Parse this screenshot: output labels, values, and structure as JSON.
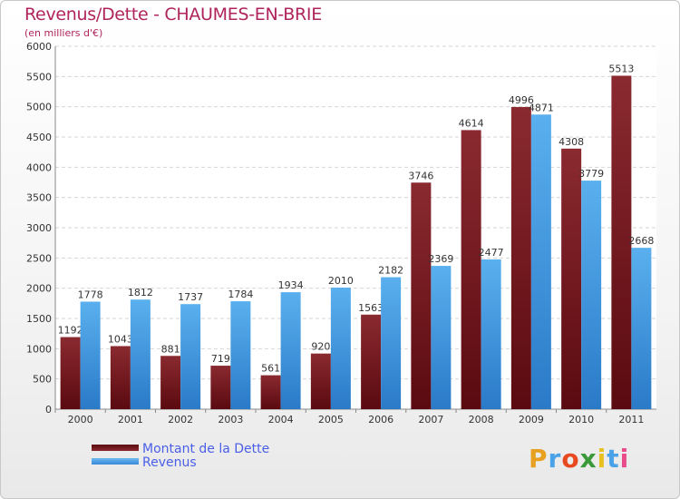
{
  "chart_data": {
    "type": "bar",
    "title": "Revenus/Dette - CHAUMES-EN-BRIE",
    "subtitle": "(en milliers d'€)",
    "categories": [
      "2000",
      "2001",
      "2002",
      "2003",
      "2004",
      "2005",
      "2006",
      "2007",
      "2008",
      "2009",
      "2010",
      "2011"
    ],
    "series": [
      {
        "name": "Montant de la Dette",
        "color": "#7a1a1f",
        "values": [
          1192,
          1043,
          881,
          719,
          561,
          920,
          1563,
          3746,
          4614,
          4996,
          4308,
          5513
        ],
        "labels": [
          "1192",
          "1043",
          "881",
          "719",
          "561",
          "920",
          "1563",
          "3746",
          "4614",
          "4996",
          "4308",
          "5513"
        ]
      },
      {
        "name": "Revenus",
        "color": "#4aa3e8",
        "values": [
          1778,
          1812,
          1737,
          1784,
          1934,
          2010,
          2182,
          2369,
          2477,
          4871,
          3779,
          2668
        ],
        "labels": [
          "1778",
          "1812",
          "1737",
          "1784",
          "1934",
          "2010",
          "2182",
          "2369",
          "2477",
          "4871",
          "3779",
          "2668"
        ]
      }
    ],
    "ylim": [
      0,
      6000
    ],
    "yticks": [
      0,
      500,
      1000,
      1500,
      2000,
      2500,
      3000,
      3500,
      4000,
      4500,
      5000,
      5500,
      6000
    ],
    "grid": true,
    "legend_position": "bottom-left"
  },
  "legend": {
    "debt_label": "Montant de la Dette",
    "revenue_label": "Revenus"
  },
  "logo": {
    "letters": [
      "P",
      "r",
      "o",
      "x",
      "i",
      "t",
      "i"
    ],
    "colors": [
      "#e8a020",
      "#4aa3e8",
      "#e84a20",
      "#3a9a3a",
      "#e8c020",
      "#4aa3e8",
      "#e84a8a"
    ]
  }
}
